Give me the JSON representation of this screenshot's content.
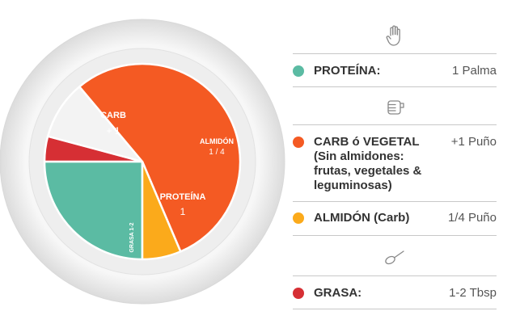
{
  "colors": {
    "proteina": "#5bbba3",
    "carb": "#f45a23",
    "almidon": "#fbaa1b",
    "grasa": "#d62f34",
    "plate_rim": "#e9e9e9",
    "plate_inner": "#f3f3f3"
  },
  "chart_data": {
    "type": "pie",
    "slices": [
      {
        "key": "proteina",
        "label": "PROTEÍNA",
        "value_label": "1",
        "start_deg": 90,
        "end_deg": 180
      },
      {
        "key": "grasa",
        "label": "GRASA 1-2",
        "value_label": "",
        "start_deg": 180,
        "end_deg": 195
      },
      {
        "key": "empty",
        "label": "",
        "value_label": "",
        "start_deg": 195,
        "end_deg": 230
      },
      {
        "key": "carb",
        "label": "CARB",
        "value_label": "+ 1",
        "start_deg": 230,
        "end_deg": 427
      },
      {
        "key": "almidon",
        "label": "ALMIDÓN",
        "value_label": "1 / 4",
        "start_deg": 67,
        "end_deg": 90
      }
    ]
  },
  "legend": {
    "icons": [
      "hand-palm-icon",
      "fist-icon",
      "spoon-icon"
    ],
    "items": [
      {
        "key": "proteina",
        "name_lines": [
          "PROTEÍNA:"
        ],
        "value": "1 Palma"
      },
      {
        "key": "carb",
        "name_lines": [
          "CARB ó VEGETAL",
          "(Sin almidones:",
          "frutas, vegetales &",
          "leguminosas)"
        ],
        "value": "+1 Puño"
      },
      {
        "key": "almidon",
        "name_lines": [
          "ALMIDÓN (Carb)"
        ],
        "value": "1/4 Puño"
      },
      {
        "key": "grasa",
        "name_lines": [
          "GRASA:"
        ],
        "value": "1-2 Tbsp"
      }
    ]
  }
}
